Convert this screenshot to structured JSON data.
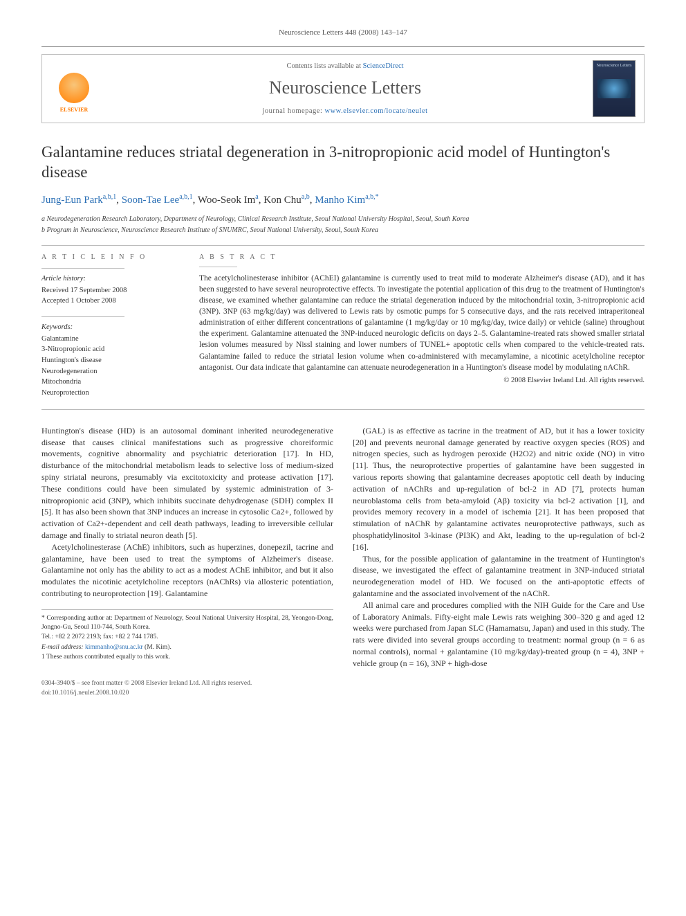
{
  "pagehead": "Neuroscience Letters 448 (2008) 143–147",
  "masthead": {
    "publisher": "ELSEVIER",
    "avail_prefix": "Contents lists available at ",
    "avail_link": "ScienceDirect",
    "journal": "Neuroscience Letters",
    "home_prefix": "journal homepage: ",
    "home_link": "www.elsevier.com/locate/neulet",
    "cover_label": "Neuroscience Letters"
  },
  "title": "Galantamine reduces striatal degeneration in 3-nitropropionic acid model of Huntington's disease",
  "authors_html": "Jung-Eun Park|a,b,1|, Soon-Tae Lee|a,b,1|, Woo-Seok Im|a|, Kon Chu|a,b|, Manho Kim|a,b,*",
  "authors": [
    {
      "name": "Jung-Eun Park",
      "sup": "a,b,1",
      "link": true
    },
    {
      "name": "Soon-Tae Lee",
      "sup": "a,b,1",
      "link": true
    },
    {
      "name": "Woo-Seok Im",
      "sup": "a",
      "link": false
    },
    {
      "name": "Kon Chu",
      "sup": "a,b",
      "link": false
    },
    {
      "name": "Manho Kim",
      "sup": "a,b,*",
      "link": true
    }
  ],
  "affiliations": {
    "a": "a Neurodegeneration Research Laboratory, Department of Neurology, Clinical Research Institute, Seoul National University Hospital, Seoul, South Korea",
    "b": "b Program in Neuroscience, Neuroscience Research Institute of SNUMRC, Seoul National University, Seoul, South Korea"
  },
  "info": {
    "heading": "A R T I C L E   I N F O",
    "history_h": "Article history:",
    "received": "Received 17 September 2008",
    "accepted": "Accepted 1 October 2008",
    "keywords_h": "Keywords:",
    "keywords": [
      "Galantamine",
      "3-Nitropropionic acid",
      "Huntington's disease",
      "Neurodegeneration",
      "Mitochondria",
      "Neuroprotection"
    ]
  },
  "abstract": {
    "heading": "A B S T R A C T",
    "text": "The acetylcholinesterase inhibitor (AChEI) galantamine is currently used to treat mild to moderate Alzheimer's disease (AD), and it has been suggested to have several neuroprotective effects. To investigate the potential application of this drug to the treatment of Huntington's disease, we examined whether galantamine can reduce the striatal degeneration induced by the mitochondrial toxin, 3-nitropropionic acid (3NP). 3NP (63 mg/kg/day) was delivered to Lewis rats by osmotic pumps for 5 consecutive days, and the rats received intraperitoneal administration of either different concentrations of galantamine (1 mg/kg/day or 10 mg/kg/day, twice daily) or vehicle (saline) throughout the experiment. Galantamine attenuated the 3NP-induced neurologic deficits on days 2–5. Galantamine-treated rats showed smaller striatal lesion volumes measured by Nissl staining and lower numbers of TUNEL+ apoptotic cells when compared to the vehicle-treated rats. Galantamine failed to reduce the striatal lesion volume when co-administered with mecamylamine, a nicotinic acetylcholine receptor antagonist. Our data indicate that galantamine can attenuate neurodegeneration in a Huntington's disease model by modulating nAChR.",
    "copyright": "© 2008 Elsevier Ireland Ltd. All rights reserved."
  },
  "body": {
    "p1": "Huntington's disease (HD) is an autosomal dominant inherited neurodegenerative disease that causes clinical manifestations such as progressive choreiformic movements, cognitive abnormality and psychiatric deterioration [17]. In HD, disturbance of the mitochondrial metabolism leads to selective loss of medium-sized spiny striatal neurons, presumably via excitotoxicity and protease activation [17]. These conditions could have been simulated by systemic administration of 3-nitropropionic acid (3NP), which inhibits succinate dehydrogenase (SDH) complex II [5]. It has also been shown that 3NP induces an increase in cytosolic Ca2+, followed by activation of Ca2+-dependent and cell death pathways, leading to irreversible cellular damage and finally to striatal neuron death [5].",
    "p2": "Acetylcholinesterase (AChE) inhibitors, such as huperzines, donepezil, tacrine and galantamine, have been used to treat the symptoms of Alzheimer's disease. Galantamine not only has the ability to act as a modest AChE inhibitor, and but it also modulates the nicotinic acetylcholine receptors (nAChRs) via allosteric potentiation, contributing to neuroprotection [19]. Galantamine",
    "p3": "(GAL) is as effective as tacrine in the treatment of AD, but it has a lower toxicity [20] and prevents neuronal damage generated by reactive oxygen species (ROS) and nitrogen species, such as hydrogen peroxide (H2O2) and nitric oxide (NO) in vitro [11]. Thus, the neuroprotective properties of galantamine have been suggested in various reports showing that galantamine decreases apoptotic cell death by inducing activation of nAChRs and up-regulation of bcl-2 in AD [7], protects human neuroblastoma cells from beta-amyloid (Aβ) toxicity via bcl-2 activation [1], and provides memory recovery in a model of ischemia [21]. It has been proposed that stimulation of nAChR by galantamine activates neuroprotective pathways, such as phosphatidylinositol 3-kinase (PI3K) and Akt, leading to the up-regulation of bcl-2 [16].",
    "p4": "Thus, for the possible application of galantamine in the treatment of Huntington's disease, we investigated the effect of galantamine treatment in 3NP-induced striatal neurodegeneration model of HD. We focused on the anti-apoptotic effects of galantamine and the associated involvement of the nAChR.",
    "p5": "All animal care and procedures complied with the NIH Guide for the Care and Use of Laboratory Animals. Fifty-eight male Lewis rats weighing 300–320 g and aged 12 weeks were purchased from Japan SLC (Hamamatsu, Japan) and used in this study. The rats were divided into several groups according to treatment: normal group (n = 6 as normal controls), normal + galantamine (10 mg/kg/day)-treated group (n = 4), 3NP + vehicle group (n = 16), 3NP + high-dose"
  },
  "footnotes": {
    "corr_star": "* Corresponding author at: Department of Neurology, Seoul National University Hospital, 28, Yeongon-Dong, Jongno-Gu, Seoul 110-744, South Korea.",
    "tel": "Tel.: +82 2 2072 2193; fax: +82 2 744 1785.",
    "email_label": "E-mail address: ",
    "email": "kimmanho@snu.ac.kr",
    "email_who": " (M. Kim).",
    "note1": "1 These authors contributed equally to this work."
  },
  "pgfoot": {
    "l1": "0304-3940/$ – see front matter © 2008 Elsevier Ireland Ltd. All rights reserved.",
    "l2": "doi:10.1016/j.neulet.2008.10.020"
  },
  "colors": {
    "link": "#2a6fb5",
    "elsevier": "#ff7a00",
    "rule": "#bbbbbb",
    "text": "#333333"
  }
}
